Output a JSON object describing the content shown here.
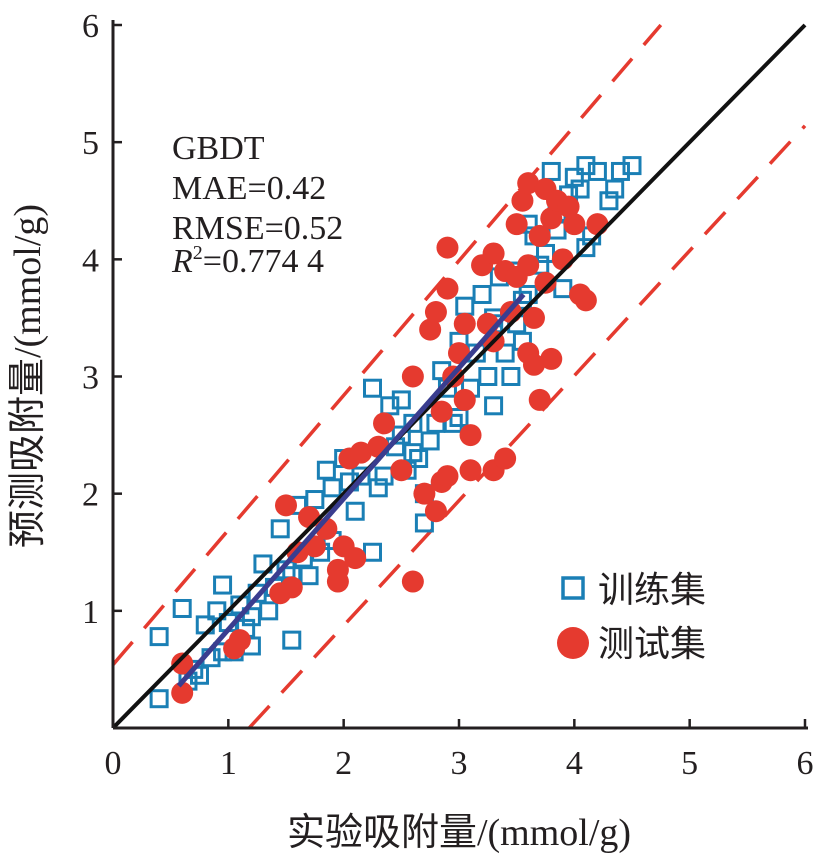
{
  "chart_data": {
    "type": "scatter",
    "xlabel": "实验吸附量/(mmol/g)",
    "ylabel": "预测吸附量/(mmol/g)",
    "xlim": [
      0,
      6
    ],
    "ylim": [
      0,
      6
    ],
    "xticks": [
      "0",
      "1",
      "2",
      "3",
      "4",
      "5",
      "6"
    ],
    "yticks": [
      "1",
      "2",
      "3",
      "4",
      "5",
      "6"
    ],
    "grid": false,
    "legend_placement": "bottom-right",
    "annotation": {
      "model": "GBDT",
      "mae": "MAE=0.42",
      "rmse": "RMSE=0.52",
      "r2_label": "R",
      "r2_sup": "2",
      "r2_value": "=0.774 4"
    },
    "colors": {
      "train": "#1a7fb5",
      "test": "#e53a2f",
      "identity": "#111111",
      "fit": "#3a3d8f",
      "bounds": "#e53a2f"
    },
    "reference_lines": {
      "identity": [
        [
          0,
          0
        ],
        [
          6,
          6
        ]
      ],
      "fit": [
        [
          0.57,
          0.36
        ],
        [
          3.56,
          3.7
        ]
      ],
      "upper_bound": [
        [
          0,
          0.54
        ],
        [
          4.75,
          6
        ]
      ],
      "lower_bound": [
        [
          1.18,
          0
        ],
        [
          6,
          5.14
        ]
      ]
    },
    "series": [
      {
        "name": "训练集",
        "marker": "square",
        "points": [
          [
            0.4,
            0.25
          ],
          [
            0.4,
            0.78
          ],
          [
            0.6,
            1.02
          ],
          [
            0.7,
            0.5
          ],
          [
            0.75,
            0.45
          ],
          [
            0.8,
            0.88
          ],
          [
            0.85,
            0.6
          ],
          [
            0.9,
            1.0
          ],
          [
            0.95,
            1.22
          ],
          [
            1.05,
            0.65
          ],
          [
            1.0,
            0.9
          ],
          [
            1.1,
            1.05
          ],
          [
            1.2,
            0.7
          ],
          [
            1.2,
            0.95
          ],
          [
            1.25,
            1.15
          ],
          [
            1.3,
            1.4
          ],
          [
            1.35,
            1.0
          ],
          [
            1.45,
            1.7
          ],
          [
            1.5,
            1.35
          ],
          [
            1.55,
            0.75
          ],
          [
            1.55,
            1.3
          ],
          [
            1.6,
            1.9
          ],
          [
            1.65,
            1.45
          ],
          [
            1.7,
            1.3
          ],
          [
            1.75,
            1.95
          ],
          [
            1.85,
            2.2
          ],
          [
            1.9,
            2.05
          ],
          [
            2.0,
            2.3
          ],
          [
            2.05,
            2.1
          ],
          [
            2.1,
            1.85
          ],
          [
            2.25,
            1.5
          ],
          [
            2.3,
            2.05
          ],
          [
            2.25,
            2.9
          ],
          [
            2.4,
            2.75
          ],
          [
            2.5,
            2.8
          ],
          [
            2.5,
            2.5
          ],
          [
            2.55,
            2.2
          ],
          [
            2.6,
            2.35
          ],
          [
            2.65,
            2.3
          ],
          [
            2.7,
            2.0
          ],
          [
            2.7,
            1.75
          ],
          [
            2.75,
            2.45
          ],
          [
            2.8,
            2.6
          ],
          [
            2.85,
            3.05
          ],
          [
            2.9,
            2.9
          ],
          [
            3.0,
            2.65
          ],
          [
            3.0,
            3.3
          ],
          [
            3.05,
            3.6
          ],
          [
            3.1,
            2.9
          ],
          [
            3.15,
            3.2
          ],
          [
            3.2,
            3.7
          ],
          [
            3.25,
            3.0
          ],
          [
            3.3,
            2.75
          ],
          [
            3.3,
            3.5
          ],
          [
            3.35,
            3.85
          ],
          [
            3.4,
            3.2
          ],
          [
            3.45,
            3.0
          ],
          [
            3.5,
            3.45
          ],
          [
            3.55,
            3.3
          ],
          [
            3.6,
            3.7
          ],
          [
            3.65,
            4.2
          ],
          [
            3.7,
            3.95
          ],
          [
            3.75,
            4.05
          ],
          [
            3.8,
            4.75
          ],
          [
            3.85,
            4.4
          ],
          [
            3.9,
            3.75
          ],
          [
            3.95,
            4.55
          ],
          [
            4.0,
            4.7
          ],
          [
            4.05,
            4.6
          ],
          [
            4.1,
            4.8
          ],
          [
            4.15,
            4.2
          ],
          [
            4.2,
            4.75
          ],
          [
            4.3,
            4.5
          ],
          [
            4.4,
            4.75
          ],
          [
            4.5,
            4.8
          ],
          [
            4.35,
            4.6
          ],
          [
            3.5,
            3.9
          ],
          [
            3.3,
            3.45
          ],
          [
            2.95,
            2.6
          ],
          [
            2.6,
            2.6
          ],
          [
            2.45,
            2.4
          ],
          [
            2.35,
            2.15
          ],
          [
            2.15,
            2.15
          ],
          [
            1.9,
            1.6
          ],
          [
            1.8,
            1.5
          ],
          [
            1.4,
            1.2
          ],
          [
            1.15,
            0.85
          ],
          [
            0.95,
            0.65
          ],
          [
            0.65,
            0.4
          ],
          [
            3.6,
            4.3
          ],
          [
            3.85,
            4.25
          ],
          [
            4.1,
            4.1
          ],
          [
            3.55,
            3.65
          ]
        ]
      },
      {
        "name": "测试集",
        "marker": "circle",
        "points": [
          [
            0.6,
            0.55
          ],
          [
            0.6,
            0.3
          ],
          [
            1.1,
            0.75
          ],
          [
            1.05,
            0.68
          ],
          [
            1.5,
            1.9
          ],
          [
            1.55,
            1.2
          ],
          [
            1.45,
            1.15
          ],
          [
            1.6,
            1.5
          ],
          [
            1.7,
            1.8
          ],
          [
            1.75,
            1.55
          ],
          [
            1.85,
            1.7
          ],
          [
            1.95,
            1.35
          ],
          [
            1.95,
            1.25
          ],
          [
            2.0,
            1.55
          ],
          [
            2.1,
            1.45
          ],
          [
            2.05,
            2.3
          ],
          [
            2.15,
            2.35
          ],
          [
            2.35,
            2.6
          ],
          [
            2.3,
            2.4
          ],
          [
            2.5,
            2.2
          ],
          [
            2.6,
            3.0
          ],
          [
            2.6,
            1.25
          ],
          [
            2.7,
            2.0
          ],
          [
            2.8,
            1.85
          ],
          [
            2.85,
            2.1
          ],
          [
            2.9,
            2.15
          ],
          [
            2.9,
            4.1
          ],
          [
            2.85,
            2.7
          ],
          [
            2.75,
            3.4
          ],
          [
            2.8,
            3.55
          ],
          [
            2.9,
            3.75
          ],
          [
            2.95,
            3.0
          ],
          [
            3.0,
            3.2
          ],
          [
            3.05,
            2.8
          ],
          [
            3.05,
            3.45
          ],
          [
            3.1,
            2.5
          ],
          [
            3.1,
            2.2
          ],
          [
            3.2,
            3.95
          ],
          [
            3.3,
            2.2
          ],
          [
            3.4,
            2.3
          ],
          [
            3.3,
            3.3
          ],
          [
            3.4,
            3.9
          ],
          [
            3.5,
            3.85
          ],
          [
            3.5,
            4.3
          ],
          [
            3.55,
            4.5
          ],
          [
            3.6,
            4.65
          ],
          [
            3.6,
            3.2
          ],
          [
            3.65,
            3.5
          ],
          [
            3.65,
            3.1
          ],
          [
            3.7,
            2.8
          ],
          [
            3.7,
            4.2
          ],
          [
            3.75,
            4.6
          ],
          [
            3.8,
            3.15
          ],
          [
            3.8,
            4.35
          ],
          [
            3.85,
            4.5
          ],
          [
            3.9,
            4.0
          ],
          [
            3.95,
            4.45
          ],
          [
            4.0,
            4.3
          ],
          [
            4.05,
            3.7
          ],
          [
            4.1,
            3.65
          ],
          [
            4.2,
            4.3
          ],
          [
            3.45,
            3.55
          ],
          [
            3.3,
            4.05
          ],
          [
            3.25,
            3.45
          ],
          [
            3.75,
            3.8
          ],
          [
            3.6,
            3.95
          ]
        ]
      }
    ]
  }
}
